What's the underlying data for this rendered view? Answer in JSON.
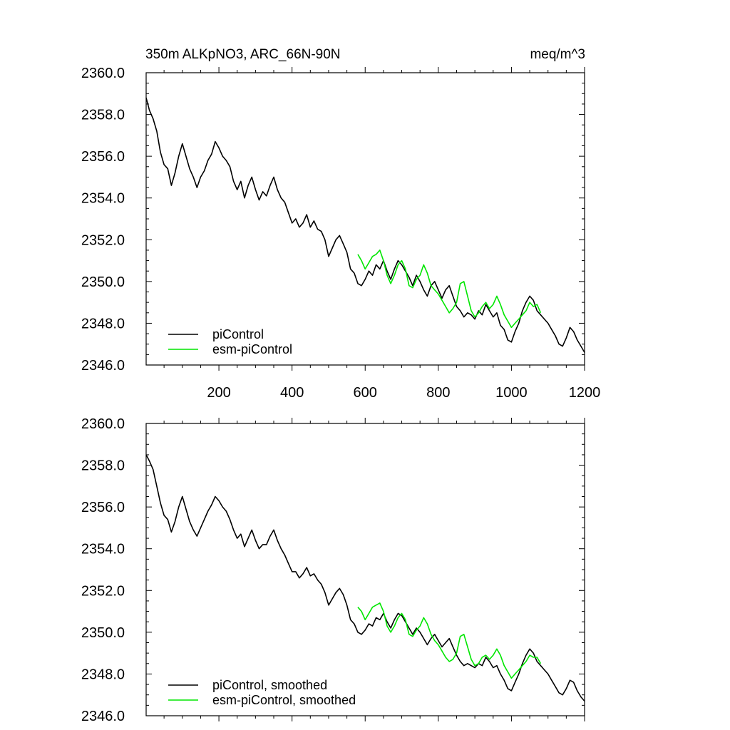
{
  "header": {
    "title": "350m ALKpNO3, ARC_66N-90N",
    "units": "meq/m^3"
  },
  "colors": {
    "piControl": "#000000",
    "esm_piControl": "#00e600",
    "axis": "#000000"
  },
  "chart_data": [
    {
      "type": "line",
      "title": "350m ALKpNO3, ARC_66N-90N",
      "units": "meq/m^3",
      "xlim": [
        1,
        1200
      ],
      "ylim": [
        2346.0,
        2360.0
      ],
      "x_ticks": [
        "200",
        "400",
        "600",
        "800",
        "1000",
        "1200"
      ],
      "y_ticks": [
        "2346.0",
        "2348.0",
        "2350.0",
        "2352.0",
        "2354.0",
        "2356.0",
        "2358.0",
        "2360.0"
      ],
      "legend": [
        "piControl",
        "esm-piControl"
      ],
      "legend_position": "bottom-left",
      "series": [
        {
          "name": "piControl",
          "color": "#000000",
          "x": [
            1,
            10,
            20,
            30,
            40,
            50,
            60,
            70,
            80,
            90,
            100,
            110,
            120,
            130,
            140,
            150,
            160,
            170,
            180,
            190,
            200,
            210,
            220,
            230,
            240,
            250,
            260,
            270,
            280,
            290,
            300,
            310,
            320,
            330,
            340,
            350,
            360,
            370,
            380,
            390,
            400,
            410,
            420,
            430,
            440,
            450,
            460,
            470,
            480,
            490,
            500,
            510,
            520,
            530,
            540,
            550,
            560,
            570,
            580,
            590,
            600,
            610,
            620,
            630,
            640,
            650,
            660,
            670,
            680,
            690,
            700,
            710,
            720,
            730,
            740,
            750,
            760,
            770,
            780,
            790,
            800,
            810,
            820,
            830,
            840,
            850,
            860,
            870,
            880,
            890,
            900,
            910,
            920,
            930,
            940,
            950,
            960,
            970,
            980,
            990,
            1000,
            1010,
            1020,
            1030,
            1040,
            1050,
            1060,
            1070,
            1080,
            1090,
            1100,
            1110,
            1120,
            1130,
            1140,
            1150,
            1160,
            1170,
            1180,
            1190,
            1200
          ],
          "values": [
            2358.8,
            2358.2,
            2357.8,
            2357.2,
            2356.2,
            2355.6,
            2355.4,
            2354.6,
            2355.2,
            2356.0,
            2356.6,
            2356.0,
            2355.4,
            2355.0,
            2354.5,
            2355.0,
            2355.3,
            2355.8,
            2356.1,
            2356.7,
            2356.4,
            2356.0,
            2355.8,
            2355.5,
            2354.8,
            2354.4,
            2354.8,
            2354.0,
            2354.6,
            2355.0,
            2354.4,
            2353.9,
            2354.3,
            2354.1,
            2354.6,
            2355.0,
            2354.4,
            2354.0,
            2353.8,
            2353.3,
            2352.8,
            2353.0,
            2352.6,
            2352.8,
            2353.2,
            2352.6,
            2352.9,
            2352.5,
            2352.4,
            2352.0,
            2351.2,
            2351.6,
            2352.0,
            2352.2,
            2351.8,
            2351.4,
            2350.6,
            2350.4,
            2349.9,
            2349.8,
            2350.1,
            2350.5,
            2350.3,
            2350.8,
            2350.6,
            2351.0,
            2350.5,
            2350.1,
            2350.6,
            2351.0,
            2350.8,
            2350.5,
            2350.2,
            2349.8,
            2350.3,
            2350.0,
            2349.6,
            2349.3,
            2349.8,
            2350.0,
            2349.6,
            2349.2,
            2349.6,
            2349.8,
            2349.3,
            2348.8,
            2348.6,
            2348.3,
            2348.5,
            2348.4,
            2348.2,
            2348.6,
            2348.4,
            2348.9,
            2348.6,
            2348.3,
            2348.5,
            2347.9,
            2347.7,
            2347.2,
            2347.1,
            2347.6,
            2348.0,
            2348.6,
            2349.0,
            2349.3,
            2349.1,
            2348.6,
            2348.4,
            2348.2,
            2348.0,
            2347.7,
            2347.4,
            2347.0,
            2346.9,
            2347.3,
            2347.8,
            2347.6,
            2347.2,
            2346.9,
            2346.6
          ]
        },
        {
          "name": "esm-piControl",
          "color": "#00e600",
          "x": [
            580,
            590,
            600,
            610,
            620,
            630,
            640,
            650,
            660,
            670,
            680,
            690,
            700,
            710,
            720,
            730,
            740,
            750,
            760,
            770,
            780,
            790,
            800,
            810,
            820,
            830,
            840,
            850,
            860,
            870,
            880,
            890,
            900,
            910,
            920,
            930,
            940,
            950,
            960,
            970,
            980,
            990,
            1000,
            1010,
            1020,
            1030,
            1040,
            1050,
            1060,
            1070,
            1080
          ],
          "values": [
            2351.3,
            2351.0,
            2350.6,
            2350.9,
            2351.2,
            2351.3,
            2351.5,
            2351.0,
            2350.3,
            2349.9,
            2350.3,
            2350.8,
            2351.0,
            2350.6,
            2349.8,
            2349.7,
            2350.1,
            2350.3,
            2350.8,
            2350.4,
            2349.8,
            2349.6,
            2349.4,
            2349.1,
            2348.8,
            2348.5,
            2348.7,
            2349.0,
            2349.9,
            2350.0,
            2349.3,
            2348.6,
            2348.3,
            2348.5,
            2348.8,
            2349.0,
            2348.7,
            2348.9,
            2349.3,
            2348.9,
            2348.4,
            2348.1,
            2347.8,
            2348.0,
            2348.2,
            2348.4,
            2348.6,
            2349.0,
            2348.8,
            2348.9,
            2348.5
          ]
        }
      ]
    },
    {
      "type": "line",
      "xlim": [
        1,
        1200
      ],
      "ylim": [
        2346.0,
        2360.0
      ],
      "y_ticks": [
        "2346.0",
        "2348.0",
        "2350.0",
        "2352.0",
        "2354.0",
        "2356.0",
        "2358.0",
        "2360.0"
      ],
      "legend": [
        "piControl, smoothed",
        "esm-piControl, smoothed"
      ],
      "legend_position": "bottom-left",
      "series": [
        {
          "name": "piControl, smoothed",
          "color": "#000000",
          "x": [
            1,
            10,
            20,
            30,
            40,
            50,
            60,
            70,
            80,
            90,
            100,
            110,
            120,
            130,
            140,
            150,
            160,
            170,
            180,
            190,
            200,
            210,
            220,
            230,
            240,
            250,
            260,
            270,
            280,
            290,
            300,
            310,
            320,
            330,
            340,
            350,
            360,
            370,
            380,
            390,
            400,
            410,
            420,
            430,
            440,
            450,
            460,
            470,
            480,
            490,
            500,
            510,
            520,
            530,
            540,
            550,
            560,
            570,
            580,
            590,
            600,
            610,
            620,
            630,
            640,
            650,
            660,
            670,
            680,
            690,
            700,
            710,
            720,
            730,
            740,
            750,
            760,
            770,
            780,
            790,
            800,
            810,
            820,
            830,
            840,
            850,
            860,
            870,
            880,
            890,
            900,
            910,
            920,
            930,
            940,
            950,
            960,
            970,
            980,
            990,
            1000,
            1010,
            1020,
            1030,
            1040,
            1050,
            1060,
            1070,
            1080,
            1090,
            1100,
            1110,
            1120,
            1130,
            1140,
            1150,
            1160,
            1170,
            1180,
            1190,
            1200
          ],
          "values": [
            2358.5,
            2358.2,
            2357.8,
            2357.0,
            2356.2,
            2355.6,
            2355.4,
            2354.8,
            2355.3,
            2356.0,
            2356.5,
            2355.9,
            2355.3,
            2354.9,
            2354.6,
            2355.0,
            2355.4,
            2355.8,
            2356.1,
            2356.5,
            2356.3,
            2356.0,
            2355.8,
            2355.4,
            2354.9,
            2354.5,
            2354.7,
            2354.1,
            2354.5,
            2354.9,
            2354.4,
            2354.0,
            2354.2,
            2354.2,
            2354.6,
            2354.9,
            2354.4,
            2354.0,
            2353.7,
            2353.3,
            2352.9,
            2352.9,
            2352.6,
            2352.8,
            2353.1,
            2352.7,
            2352.8,
            2352.5,
            2352.3,
            2351.9,
            2351.3,
            2351.6,
            2351.9,
            2352.1,
            2351.8,
            2351.3,
            2350.6,
            2350.4,
            2350.0,
            2349.9,
            2350.1,
            2350.4,
            2350.3,
            2350.7,
            2350.6,
            2350.9,
            2350.5,
            2350.2,
            2350.6,
            2350.9,
            2350.8,
            2350.5,
            2350.2,
            2349.9,
            2350.2,
            2350.0,
            2349.7,
            2349.4,
            2349.7,
            2349.9,
            2349.6,
            2349.3,
            2349.5,
            2349.7,
            2349.3,
            2348.9,
            2348.6,
            2348.4,
            2348.5,
            2348.4,
            2348.3,
            2348.5,
            2348.4,
            2348.8,
            2348.6,
            2348.3,
            2348.4,
            2348.0,
            2347.7,
            2347.3,
            2347.2,
            2347.6,
            2348.0,
            2348.5,
            2348.9,
            2349.2,
            2349.0,
            2348.6,
            2348.4,
            2348.2,
            2348.0,
            2347.7,
            2347.4,
            2347.1,
            2347.0,
            2347.3,
            2347.7,
            2347.6,
            2347.2,
            2346.9,
            2346.7
          ]
        },
        {
          "name": "esm-piControl, smoothed",
          "color": "#00e600",
          "x": [
            580,
            590,
            600,
            610,
            620,
            630,
            640,
            650,
            660,
            670,
            680,
            690,
            700,
            710,
            720,
            730,
            740,
            750,
            760,
            770,
            780,
            790,
            800,
            810,
            820,
            830,
            840,
            850,
            860,
            870,
            880,
            890,
            900,
            910,
            920,
            930,
            940,
            950,
            960,
            970,
            980,
            990,
            1000,
            1010,
            1020,
            1030,
            1040,
            1050,
            1060,
            1070,
            1080
          ],
          "values": [
            2351.2,
            2351.0,
            2350.6,
            2350.9,
            2351.2,
            2351.3,
            2351.4,
            2351.0,
            2350.3,
            2350.0,
            2350.3,
            2350.7,
            2350.9,
            2350.6,
            2349.9,
            2349.8,
            2350.1,
            2350.3,
            2350.7,
            2350.4,
            2349.9,
            2349.6,
            2349.4,
            2349.1,
            2348.8,
            2348.6,
            2348.7,
            2349.0,
            2349.8,
            2349.9,
            2349.3,
            2348.7,
            2348.4,
            2348.5,
            2348.8,
            2348.9,
            2348.7,
            2348.9,
            2349.2,
            2348.9,
            2348.4,
            2348.1,
            2347.8,
            2348.0,
            2348.2,
            2348.4,
            2348.6,
            2348.9,
            2348.8,
            2348.8,
            2348.5
          ]
        }
      ]
    }
  ]
}
